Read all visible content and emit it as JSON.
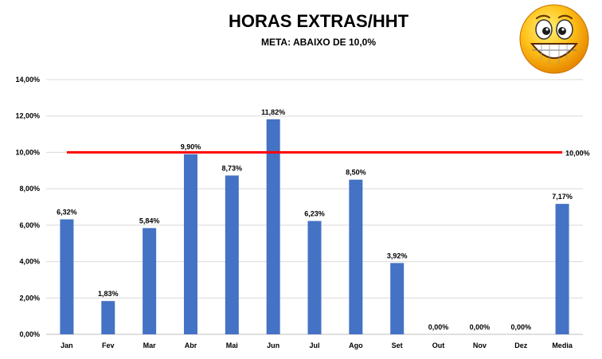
{
  "chart_data": {
    "type": "bar",
    "title": "HORAS EXTRAS/HHT",
    "subtitle": "META: ABAIXO DE 10,0%",
    "categories": [
      "Jan",
      "Fev",
      "Mar",
      "Abr",
      "Mai",
      "Jun",
      "Jul",
      "Ago",
      "Set",
      "Out",
      "Nov",
      "Dez",
      "Media"
    ],
    "values": [
      6.32,
      1.83,
      5.84,
      9.9,
      8.73,
      11.82,
      6.23,
      8.5,
      3.92,
      0.0,
      0.0,
      0.0,
      7.17
    ],
    "value_labels": [
      "6,32%",
      "1,83%",
      "5,84%",
      "9,90%",
      "8,73%",
      "11,82%",
      "6,23%",
      "8,50%",
      "3,92%",
      "0,00%",
      "0,00%",
      "0,00%",
      "7,17%"
    ],
    "ylim": [
      0,
      14
    ],
    "yticks": [
      0,
      2,
      4,
      6,
      8,
      10,
      12,
      14
    ],
    "ytick_labels": [
      "0,00%",
      "2,00%",
      "4,00%",
      "6,00%",
      "8,00%",
      "10,00%",
      "12,00%",
      "14,00%"
    ],
    "target": {
      "value": 10.0,
      "label": "10,00%",
      "color": "#ff0000"
    },
    "bar_color": "#4472c4",
    "grid": true,
    "legend": "none"
  },
  "decoration": {
    "icon": "smiley-face-icon"
  }
}
